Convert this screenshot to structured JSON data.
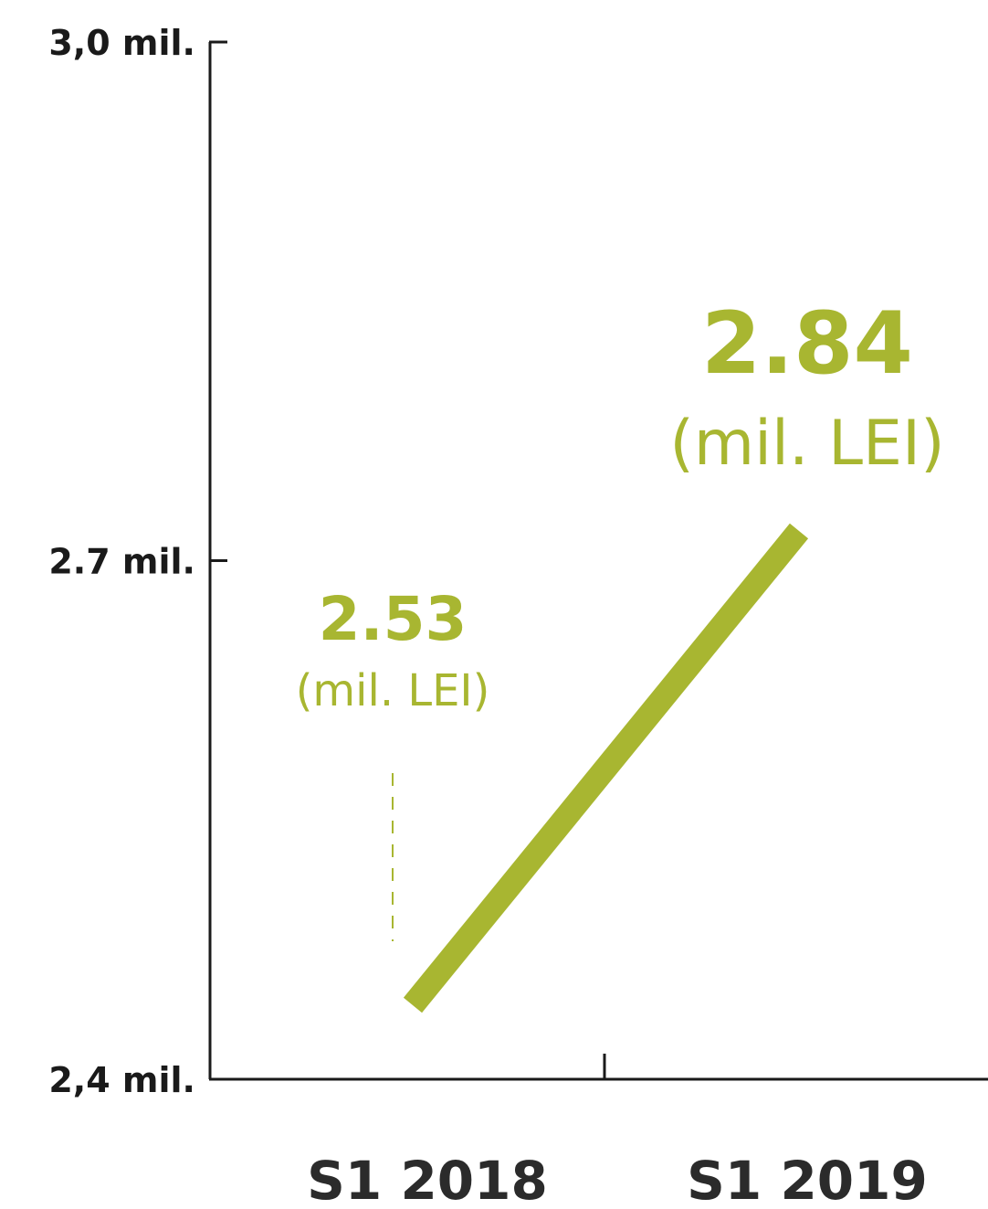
{
  "chart_data": {
    "type": "line",
    "categories": [
      "S1 2018",
      "S1 2019"
    ],
    "series": [
      {
        "values": [
          2.53,
          2.84
        ]
      }
    ],
    "data_labels": [
      {
        "value": "2.53",
        "unit": "(mil. LEI)"
      },
      {
        "value": "2.84",
        "unit": "(mil. LEI)"
      }
    ],
    "y_ticks": [
      {
        "value": 2.4,
        "label": "2,4 mil."
      },
      {
        "value": 2.7,
        "label": "2.7 mil."
      },
      {
        "value": 3.0,
        "label": "3,0 mil."
      }
    ],
    "ylim": [
      2.4,
      3.0
    ],
    "grid": false,
    "colors": {
      "series": "#a8b631",
      "axis": "#1a1a1a"
    }
  }
}
